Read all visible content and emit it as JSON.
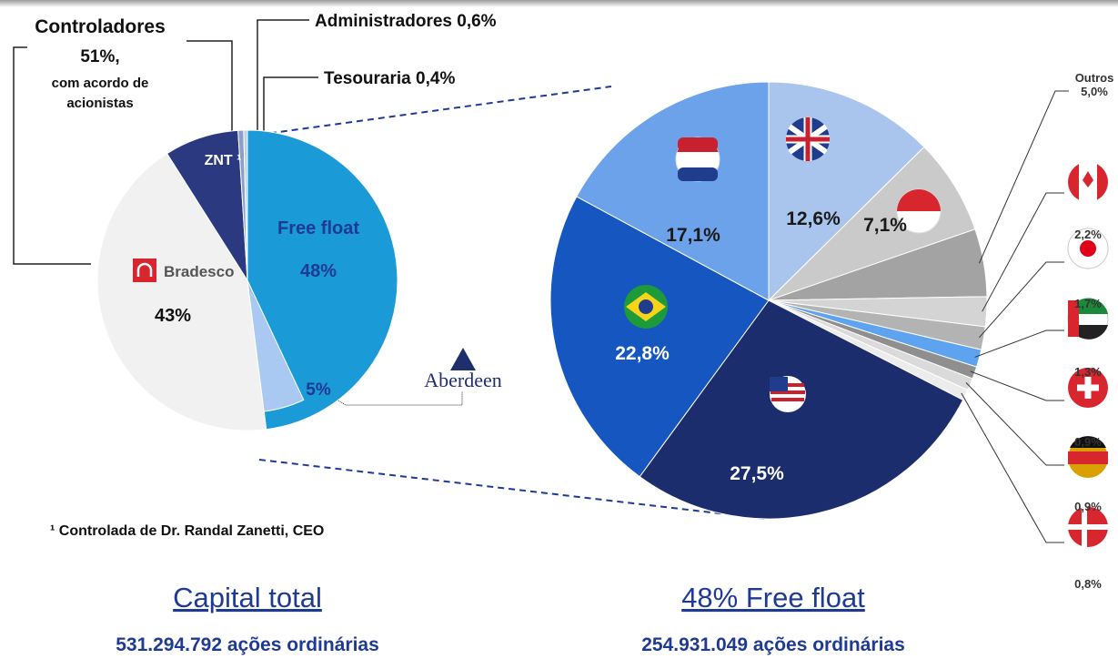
{
  "chart_data": [
    {
      "type": "pie",
      "title": "Capital total",
      "subtitle": "531.294.792 ações ordinárias",
      "categories": [
        "Free float",
        "Bradesco",
        "ZNT ¹",
        "Administradores",
        "Tesouraria"
      ],
      "values": [
        48,
        43,
        8,
        0.6,
        0.4
      ],
      "value_labels": [
        "48%",
        "43%",
        null,
        "0,6%",
        "0,4%"
      ],
      "colors": [
        "#1a9bd7",
        "#f1f1f1",
        "#2b3a80",
        "#8aa0c8",
        "#c4cedd"
      ],
      "highlight": {
        "name": "Aberdeen",
        "value": 5,
        "value_label": "5%",
        "color": "#a9c9f2"
      },
      "annotation": {
        "title": "Controladores",
        "value": 51,
        "value_label": "51%,",
        "note": [
          "com acordo de",
          "acionistas"
        ]
      },
      "footnote": "¹  Controlada de Dr. Randal Zanetti, CEO"
    },
    {
      "type": "pie",
      "title": "48% Free float",
      "subtitle": "254.931.049 ações ordinárias",
      "categories": [
        null,
        null,
        "Outros",
        null,
        null,
        null,
        null,
        null,
        null,
        null,
        null,
        null
      ],
      "values": [
        12.6,
        7.1,
        5.0,
        2.2,
        1.7,
        1.3,
        0.9,
        0.9,
        0.8,
        27.5,
        22.8,
        17.1
      ],
      "value_labels": [
        "12,6%",
        "7,1%",
        "5,0%",
        "2,2%",
        "1,7%",
        "1,3%",
        "0,9%",
        "0,9%",
        "0,8%",
        "27,5%",
        "22,8%",
        "17,1%"
      ],
      "colors": [
        "#a9c5ee",
        "#cacaca",
        "#a3a3a3",
        "#d4d4d4",
        "#b3b3b3",
        "#5da3ef",
        "#8f8f8f",
        "#dadada",
        "#ececec",
        "#1c2d6e",
        "#1656c0",
        "#6ca2ea"
      ]
    }
  ]
}
